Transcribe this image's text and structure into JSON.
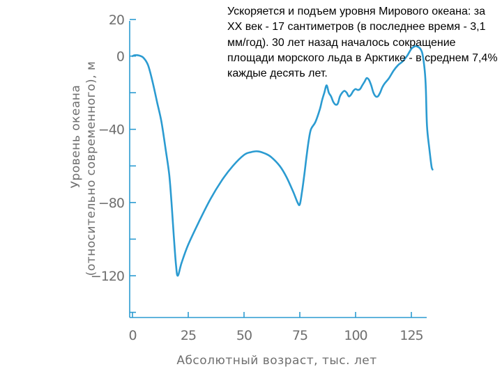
{
  "caption": "Ускоряется и подъем уровня Мирового океана: за XX век - 17 сантиметров (в последнее время - 3,1 мм/год). 30 лет назад началось сокращение площади морского льда в Арктике - в среднем 7,4% каждые десять лет.",
  "chart_data": {
    "type": "line",
    "title": "",
    "xlabel": "Абсолютный возраст, тыс. лет",
    "ylabel_line1": "Уровень океана",
    "ylabel_line2": "(относительно современного), м",
    "xlim": [
      0,
      135
    ],
    "ylim": [
      -145,
      20
    ],
    "x_ticks": [
      {
        "value": 0,
        "label": "0"
      },
      {
        "value": 25,
        "label": "25"
      },
      {
        "value": 50,
        "label": "50"
      },
      {
        "value": 75,
        "label": "75"
      },
      {
        "value": 100,
        "label": "100"
      },
      {
        "value": 125,
        "label": "125"
      }
    ],
    "y_ticks": [
      {
        "value": 20,
        "label": "20",
        "labeled": true
      },
      {
        "value": 0,
        "label": "0",
        "labeled": true
      },
      {
        "value": -20,
        "label": "",
        "labeled": false
      },
      {
        "value": -40,
        "label": "−40",
        "labeled": true
      },
      {
        "value": -60,
        "label": "",
        "labeled": false
      },
      {
        "value": -80,
        "label": "−80",
        "labeled": true
      },
      {
        "value": -100,
        "label": "",
        "labeled": false
      },
      {
        "value": -120,
        "label": "−120",
        "labeled": true
      },
      {
        "value": -140,
        "label": "",
        "labeled": false
      }
    ],
    "grid": false,
    "series": [
      {
        "color": "#2b9bd1",
        "points": [
          [
            0,
            0
          ],
          [
            1,
            0.5
          ],
          [
            3,
            0.3
          ],
          [
            5,
            -1
          ],
          [
            7,
            -5
          ],
          [
            9,
            -14
          ],
          [
            11,
            -25
          ],
          [
            13,
            -36
          ],
          [
            15,
            -52
          ],
          [
            16.5,
            -65
          ],
          [
            17.5,
            -80
          ],
          [
            18.5,
            -98
          ],
          [
            19.5,
            -114
          ],
          [
            20.3,
            -120
          ],
          [
            22,
            -113
          ],
          [
            25,
            -103
          ],
          [
            30,
            -90
          ],
          [
            35,
            -78
          ],
          [
            40,
            -68
          ],
          [
            45,
            -60
          ],
          [
            50,
            -54
          ],
          [
            53,
            -52.5
          ],
          [
            56,
            -52
          ],
          [
            59,
            -53
          ],
          [
            62,
            -55
          ],
          [
            66,
            -60
          ],
          [
            69,
            -66
          ],
          [
            72,
            -74
          ],
          [
            74,
            -80
          ],
          [
            75,
            -81
          ],
          [
            76,
            -74
          ],
          [
            77,
            -65
          ],
          [
            78,
            -55
          ],
          [
            79,
            -46
          ],
          [
            80,
            -40
          ],
          [
            82,
            -36
          ],
          [
            84,
            -29
          ],
          [
            85,
            -24
          ],
          [
            86,
            -20
          ],
          [
            87,
            -16
          ],
          [
            88,
            -20
          ],
          [
            89,
            -22
          ],
          [
            90,
            -25
          ],
          [
            91,
            -26.5
          ],
          [
            92,
            -26
          ],
          [
            93,
            -22
          ],
          [
            94,
            -20
          ],
          [
            95,
            -19
          ],
          [
            96,
            -20
          ],
          [
            97,
            -22
          ],
          [
            98,
            -21
          ],
          [
            99,
            -19
          ],
          [
            100,
            -18
          ],
          [
            101,
            -18.5
          ],
          [
            102,
            -18
          ],
          [
            103,
            -16
          ],
          [
            104,
            -14
          ],
          [
            105,
            -12
          ],
          [
            106,
            -13
          ],
          [
            107,
            -16
          ],
          [
            108,
            -20
          ],
          [
            109,
            -22
          ],
          [
            110,
            -22
          ],
          [
            111,
            -20
          ],
          [
            112,
            -17
          ],
          [
            113,
            -15
          ],
          [
            115,
            -12
          ],
          [
            117,
            -8
          ],
          [
            119,
            -5
          ],
          [
            121,
            -3
          ],
          [
            123,
            0
          ],
          [
            124,
            2
          ],
          [
            125,
            4
          ],
          [
            126,
            5
          ],
          [
            127,
            5.5
          ],
          [
            128,
            5
          ],
          [
            129,
            4
          ],
          [
            130,
            1
          ],
          [
            131,
            -8
          ],
          [
            131.5,
            -18
          ],
          [
            132,
            -38
          ],
          [
            133,
            -50
          ],
          [
            134,
            -60
          ],
          [
            134.5,
            -62
          ]
        ]
      }
    ]
  }
}
